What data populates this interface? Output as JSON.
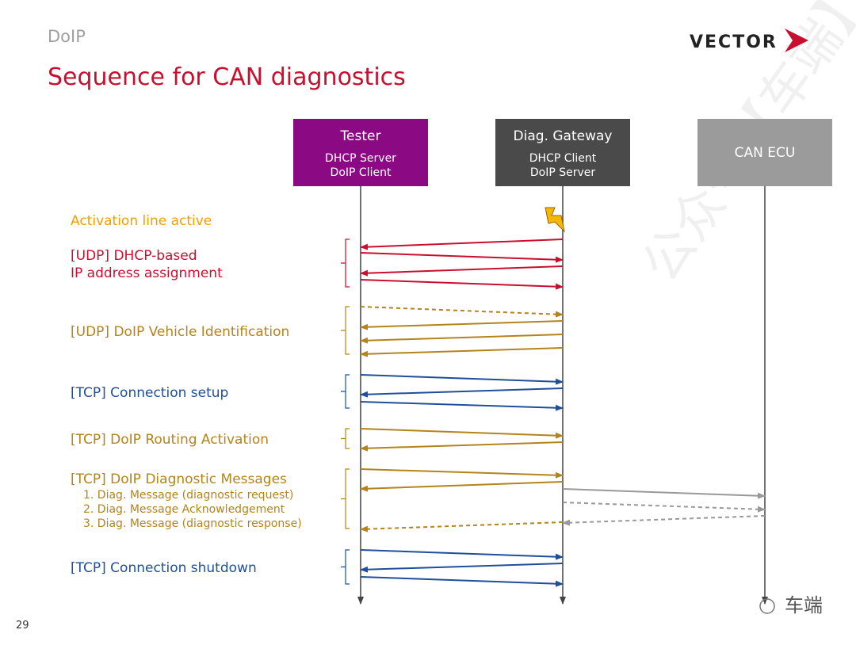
{
  "header": {
    "section": "DoIP",
    "title": "Sequence for CAN diagnostics",
    "logo": "VECTOR"
  },
  "participants": [
    {
      "name": "Tester",
      "roles": [
        "DHCP Server",
        "DoIP Client"
      ]
    },
    {
      "name": "Diag. Gateway",
      "roles": [
        "DHCP Client",
        "DoIP Server"
      ]
    },
    {
      "name": "CAN ECU",
      "roles": []
    }
  ],
  "phases": [
    {
      "lines": [
        "Activation line active"
      ]
    },
    {
      "lines": [
        "[UDP] DHCP-based",
        "IP address assignment"
      ]
    },
    {
      "lines": [
        "[UDP] DoIP Vehicle Identification"
      ]
    },
    {
      "lines": [
        "[TCP] Connection setup"
      ]
    },
    {
      "lines": [
        "[TCP] DoIP Routing Activation"
      ]
    },
    {
      "lines": [
        "[TCP] DoIP Diagnostic Messages"
      ],
      "items": [
        "1. Diag. Message (diagnostic request)",
        "2. Diag. Message Acknowledgement",
        "3. Diag. Message (diagnostic response)"
      ]
    },
    {
      "lines": [
        "[TCP] Connection shutdown"
      ]
    }
  ],
  "footer": {
    "page": "29",
    "watermark": "车端",
    "diagonal_watermark": "公众号【车端】"
  }
}
